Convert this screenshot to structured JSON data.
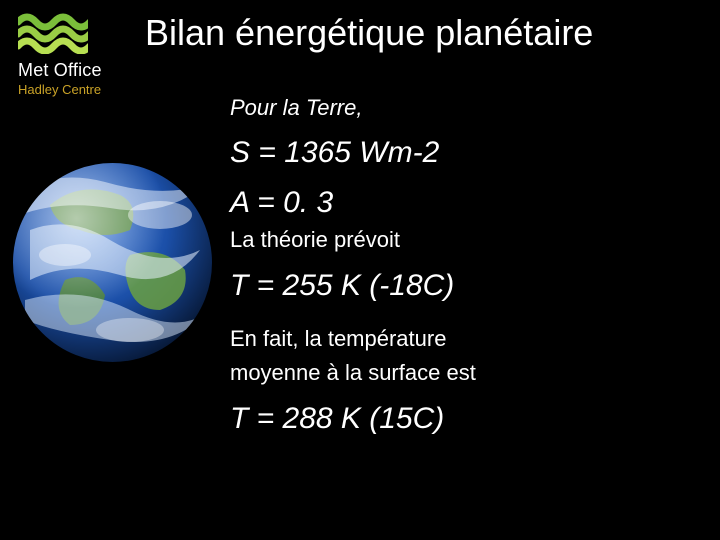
{
  "brand": {
    "name": "Met Office",
    "sub": "Hadley Centre",
    "wave_colors": [
      "#7bbf3a",
      "#9acd45",
      "#b7df52"
    ],
    "sub_color": "#c9a227"
  },
  "title": "Bilan énergétique planétaire",
  "earth": {
    "bg_color": "#081020",
    "ocean": "#1b4fa8",
    "land": "#3a7d2c",
    "cloud": "#e8f2ff"
  },
  "lines": [
    {
      "text": "Pour la Terre,",
      "cls": "italic fs-sub gap-md"
    },
    {
      "text": "S = 1365 Wm-2",
      "cls": "italic fs-eq gap-md"
    },
    {
      "text": "A = 0. 3",
      "cls": "italic fs-eq gap-sm"
    },
    {
      "text": "La théorie prévoit",
      "cls": "fs-txt gap-md"
    },
    {
      "text": "T = 255 K (-18C)",
      "cls": "italic fs-eq gap-lg"
    },
    {
      "text": "En fait, la température",
      "cls": "fs-txt"
    },
    {
      "text": "moyenne à la surface est",
      "cls": "fs-txt gap-md"
    },
    {
      "text": "T = 288 K (15C)",
      "cls": "italic fs-eq"
    }
  ]
}
